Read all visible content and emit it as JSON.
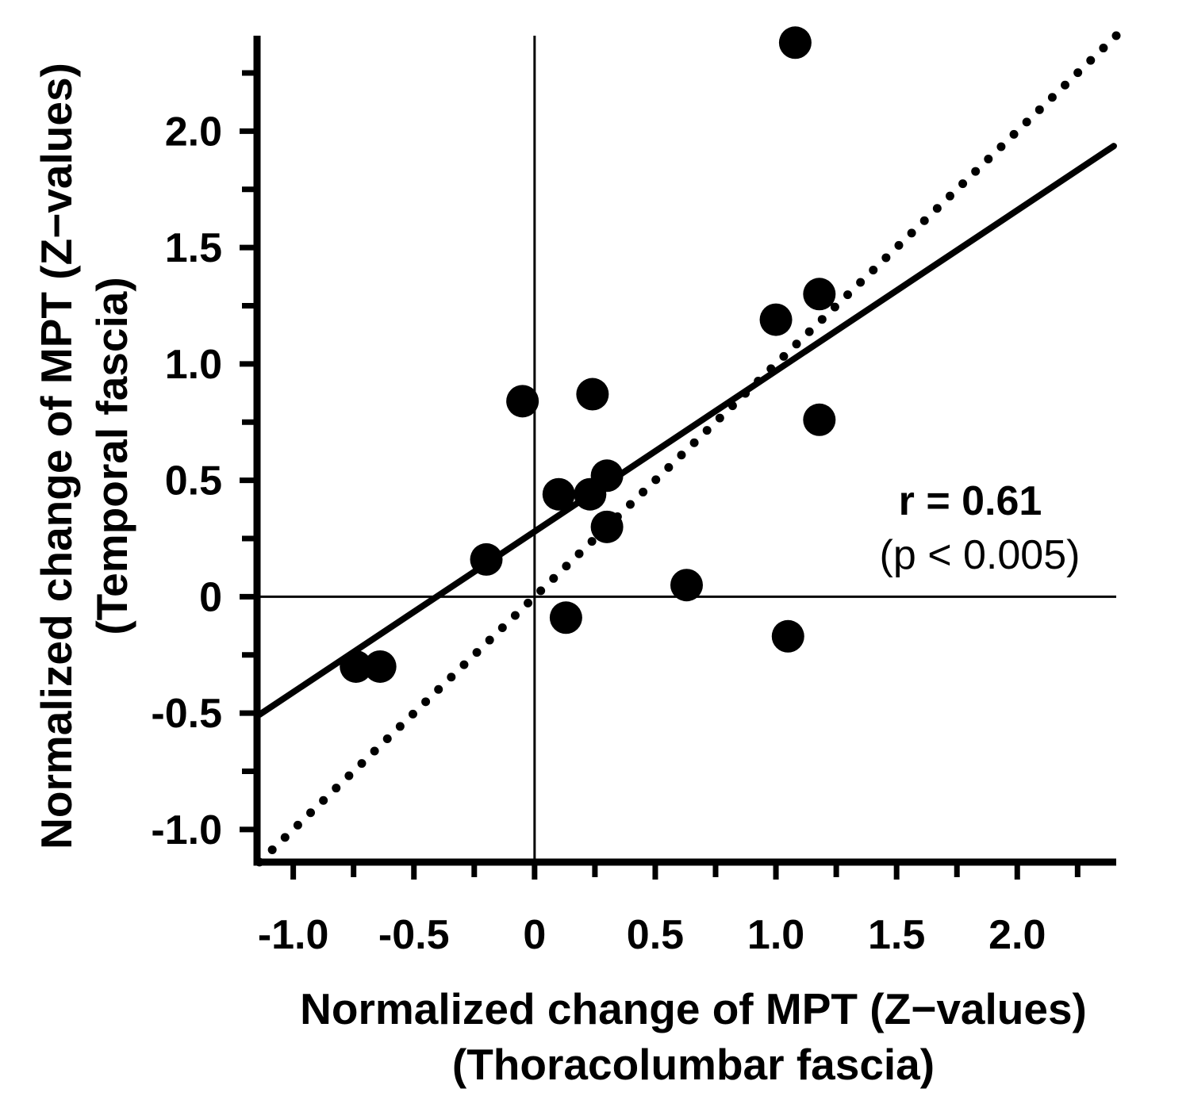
{
  "figure": {
    "background_color": "#ffffff",
    "foreground_color": "#000000"
  },
  "chart_data": {
    "type": "scatter",
    "xlabel": {
      "line1": "Normalized change of MPT (Z−values)",
      "line2": "(Thoracolumbar fascia)"
    },
    "ylabel": {
      "line1": "Normalized change of MPT (Z−values)",
      "line2": "(Temporal fascia)"
    },
    "xlim": [
      -1.15,
      2.41
    ],
    "ylim": [
      -1.14,
      2.41
    ],
    "grid": false,
    "x_major_ticks": {
      "values": [
        -1.0,
        -0.5,
        0,
        0.5,
        1.0,
        1.5,
        2.0
      ],
      "labels": [
        "-1.0",
        "-0.5",
        "0",
        "0.5",
        "1.0",
        "1.5",
        "2.0"
      ]
    },
    "x_minor_ticks": [
      -0.75,
      -0.25,
      0.25,
      0.75,
      1.25,
      1.75,
      2.25
    ],
    "y_major_ticks": {
      "values": [
        -1.0,
        -0.5,
        0,
        0.5,
        1.0,
        1.5,
        2.0
      ],
      "labels": [
        "-1.0",
        "-0.5",
        "0",
        "0.5",
        "1.0",
        "1.5",
        "2.0"
      ]
    },
    "y_minor_ticks": [
      -0.75,
      -0.25,
      0.25,
      0.75,
      1.25,
      1.75,
      2.25
    ],
    "zero_lines": true,
    "points": [
      [
        -0.74,
        -0.3
      ],
      [
        -0.64,
        -0.3
      ],
      [
        -0.2,
        0.16
      ],
      [
        -0.05,
        0.84
      ],
      [
        0.1,
        0.44
      ],
      [
        0.13,
        -0.09
      ],
      [
        0.23,
        0.44
      ],
      [
        0.24,
        0.87
      ],
      [
        0.3,
        0.52
      ],
      [
        0.3,
        0.3
      ],
      [
        0.63,
        0.05
      ],
      [
        1.0,
        1.19
      ],
      [
        1.05,
        -0.17
      ],
      [
        1.08,
        2.38
      ],
      [
        1.18,
        1.3
      ],
      [
        1.18,
        0.76
      ]
    ],
    "marker": {
      "shape": "circle",
      "color": "#000000",
      "radius_px": 20.5
    },
    "regression_line": {
      "style": "solid",
      "slope": 0.69,
      "intercept": 0.28,
      "x_start": -1.14,
      "x_end": 2.4
    },
    "identity_line": {
      "style": "dotted",
      "slope": 1,
      "intercept": 0,
      "x_start": -1.14,
      "x_end": 2.41,
      "dot_radius_px": 5.5,
      "dot_spacing_px": 22.5
    },
    "annotation": {
      "line1": "r = 0.61",
      "line2": "(p < 0.005)"
    }
  }
}
